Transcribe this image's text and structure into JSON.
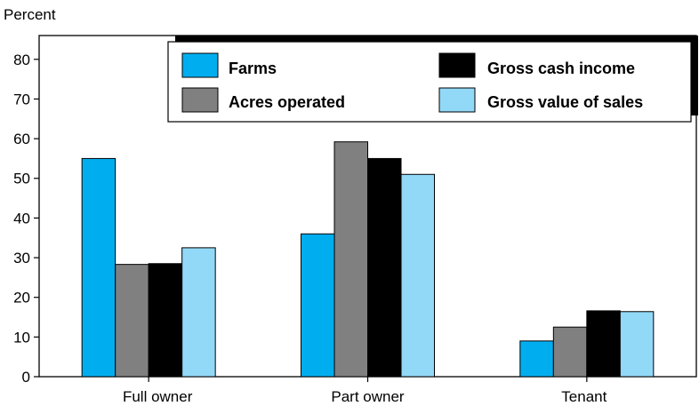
{
  "chart_data": {
    "type": "bar",
    "ylabel": "Percent",
    "ylim": [
      0,
      86
    ],
    "yticks": [
      0,
      10,
      20,
      30,
      40,
      50,
      60,
      70,
      80
    ],
    "categories": [
      "Full owner",
      "Part owner",
      "Tenant"
    ],
    "series": [
      {
        "name": "Farms",
        "color": "#00aeef",
        "values": [
          55,
          36,
          9
        ]
      },
      {
        "name": "Acres operated",
        "color": "#808080",
        "values": [
          28.3,
          59.2,
          12.5
        ]
      },
      {
        "name": "Gross cash income",
        "color": "#000000",
        "values": [
          28.5,
          55,
          16.6
        ]
      },
      {
        "name": "Gross value of sales",
        "color": "#92d9f7",
        "values": [
          32.5,
          51,
          16.4
        ]
      }
    ],
    "legend_position": "top-right",
    "grid": false
  }
}
